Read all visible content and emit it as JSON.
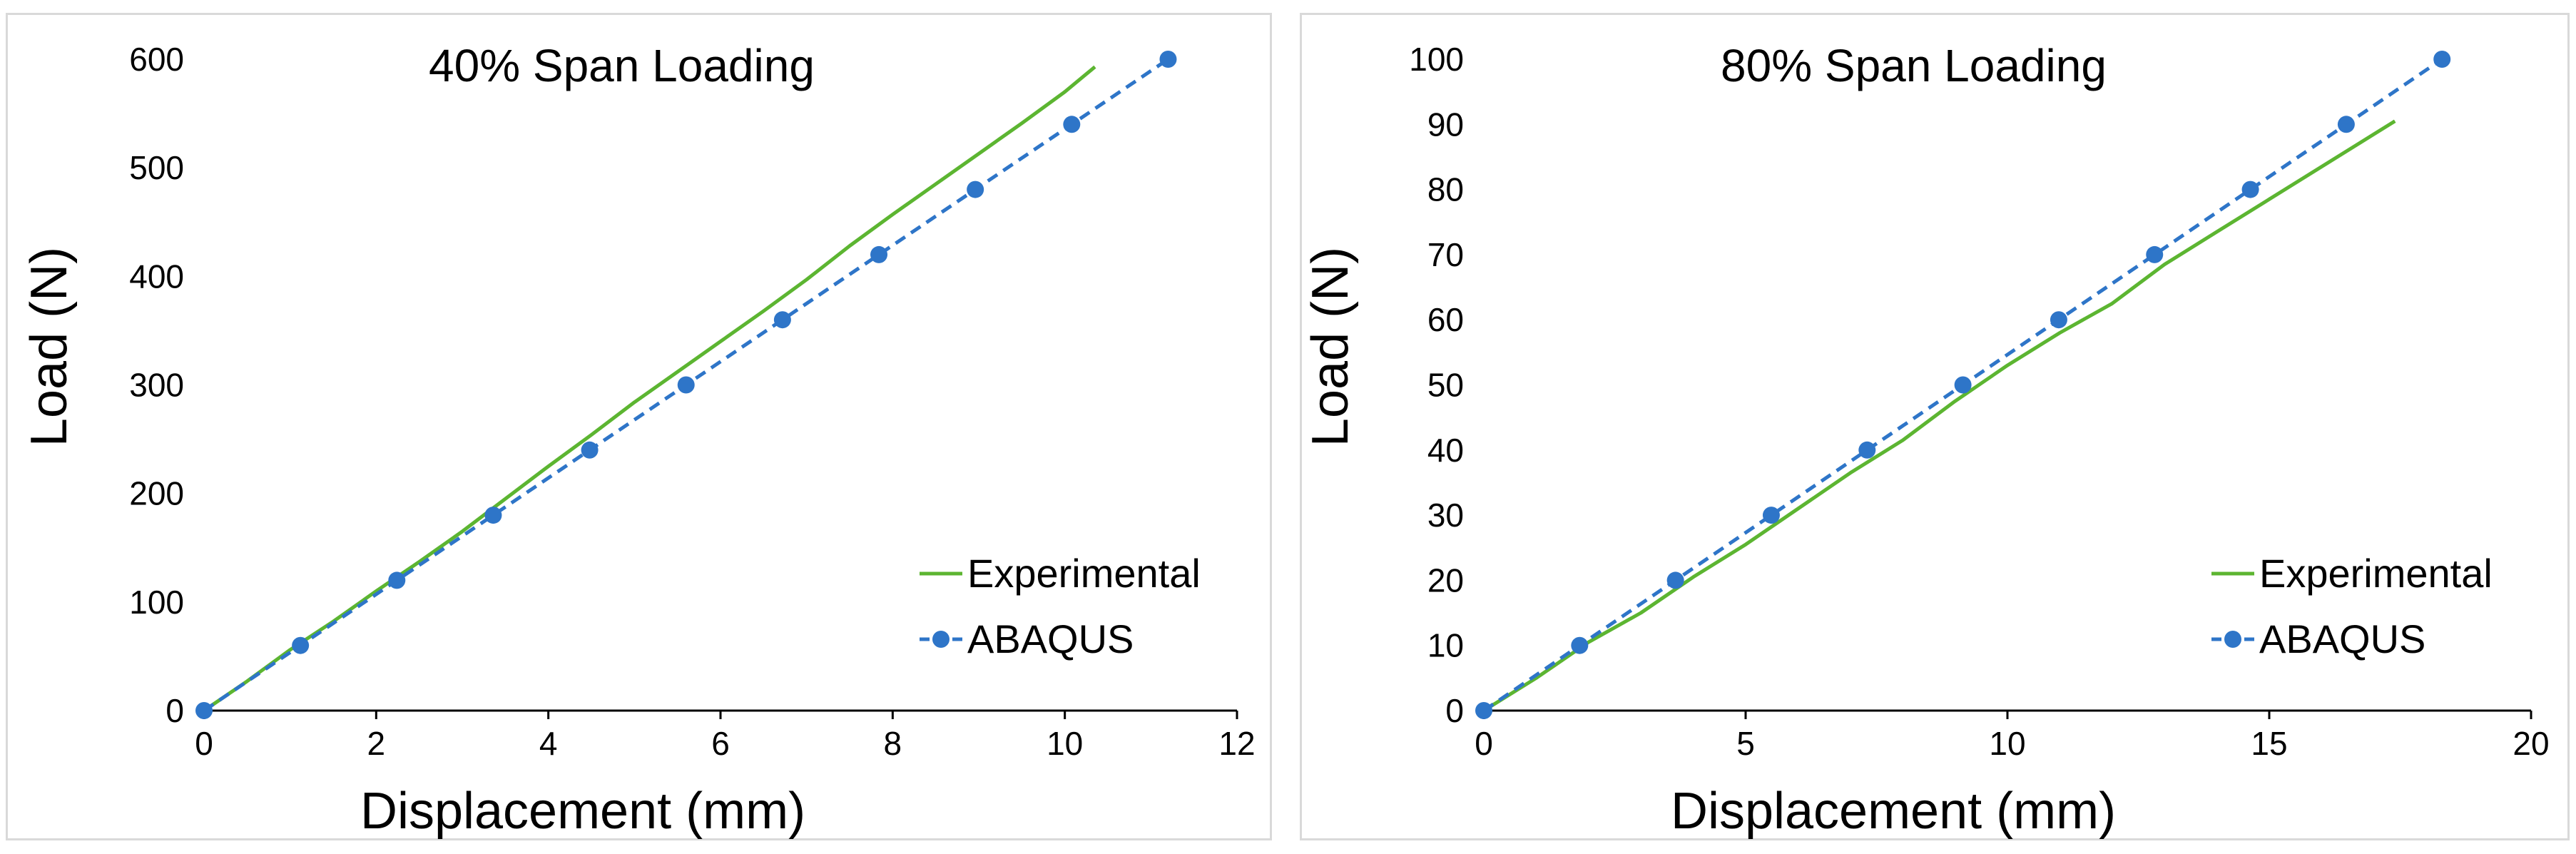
{
  "chart_data": [
    {
      "type": "line",
      "title": "40% Span Loading",
      "xlabel": "Displacement (mm)",
      "ylabel": "Load (N)",
      "xlim": [
        0,
        12
      ],
      "ylim": [
        0,
        600
      ],
      "xticks": [
        0,
        2,
        4,
        6,
        8,
        10,
        12
      ],
      "yticks": [
        0,
        100,
        200,
        300,
        400,
        500,
        600
      ],
      "xtick_labels": [
        "0",
        "2",
        "4",
        "6",
        "8",
        "10",
        "12"
      ],
      "ytick_labels": [
        "0",
        "100",
        "200",
        "300",
        "400",
        "500",
        "600"
      ],
      "grid": false,
      "legend_position": "bottom-right",
      "series": [
        {
          "name": "Experimental",
          "style": "solid",
          "color": "#5cb531",
          "x": [
            0,
            0.5,
            1.0,
            1.5,
            2.0,
            2.5,
            3.0,
            3.5,
            4.0,
            4.5,
            5.0,
            5.5,
            6.0,
            6.5,
            7.0,
            7.5,
            8.0,
            8.5,
            9.0,
            9.5,
            10.0,
            10.35
          ],
          "y": [
            0,
            27,
            56,
            82,
            110,
            137,
            165,
            195,
            225,
            254,
            284,
            312,
            340,
            368,
            397,
            428,
            457,
            485,
            513,
            541,
            570,
            593
          ]
        },
        {
          "name": "ABAQUS",
          "style": "dashed-markers",
          "color": "#2e75c8",
          "x": [
            0,
            1.12,
            2.24,
            3.36,
            4.48,
            5.6,
            6.72,
            7.84,
            8.96,
            10.08,
            11.2
          ],
          "y": [
            0,
            60,
            120,
            180,
            240,
            300,
            360,
            420,
            480,
            540,
            600
          ]
        }
      ]
    },
    {
      "type": "line",
      "title": "80% Span Loading",
      "xlabel": "Displacement (mm)",
      "ylabel": "Load (N)",
      "xlim": [
        0,
        20
      ],
      "ylim": [
        0,
        100
      ],
      "xticks": [
        0,
        5,
        10,
        15,
        20
      ],
      "yticks": [
        0,
        10,
        20,
        30,
        40,
        50,
        60,
        70,
        80,
        90,
        100
      ],
      "xtick_labels": [
        "0",
        "5",
        "10",
        "15",
        "20"
      ],
      "ytick_labels": [
        "0",
        "10",
        "20",
        "30",
        "40",
        "50",
        "60",
        "70",
        "80",
        "90",
        "100"
      ],
      "grid": false,
      "legend_position": "bottom-right",
      "series": [
        {
          "name": "Experimental",
          "style": "solid",
          "color": "#5cb531",
          "x": [
            0,
            1,
            2,
            3,
            4,
            5,
            6,
            7,
            8,
            9,
            10,
            11,
            12,
            13,
            14,
            15,
            16,
            17,
            17.4
          ],
          "y": [
            0,
            5,
            10.5,
            15,
            20.5,
            25.5,
            31,
            36.5,
            41.5,
            47.5,
            53,
            58,
            62.5,
            68.5,
            73.5,
            78.5,
            83.5,
            88.5,
            90.5
          ]
        },
        {
          "name": "ABAQUS",
          "style": "dashed-markers",
          "color": "#2e75c8",
          "x": [
            0,
            1.83,
            3.66,
            5.49,
            7.32,
            9.15,
            10.98,
            12.81,
            14.64,
            16.47,
            18.3
          ],
          "y": [
            0,
            10,
            20,
            30,
            40,
            50,
            60,
            70,
            80,
            90,
            100
          ]
        }
      ]
    }
  ]
}
